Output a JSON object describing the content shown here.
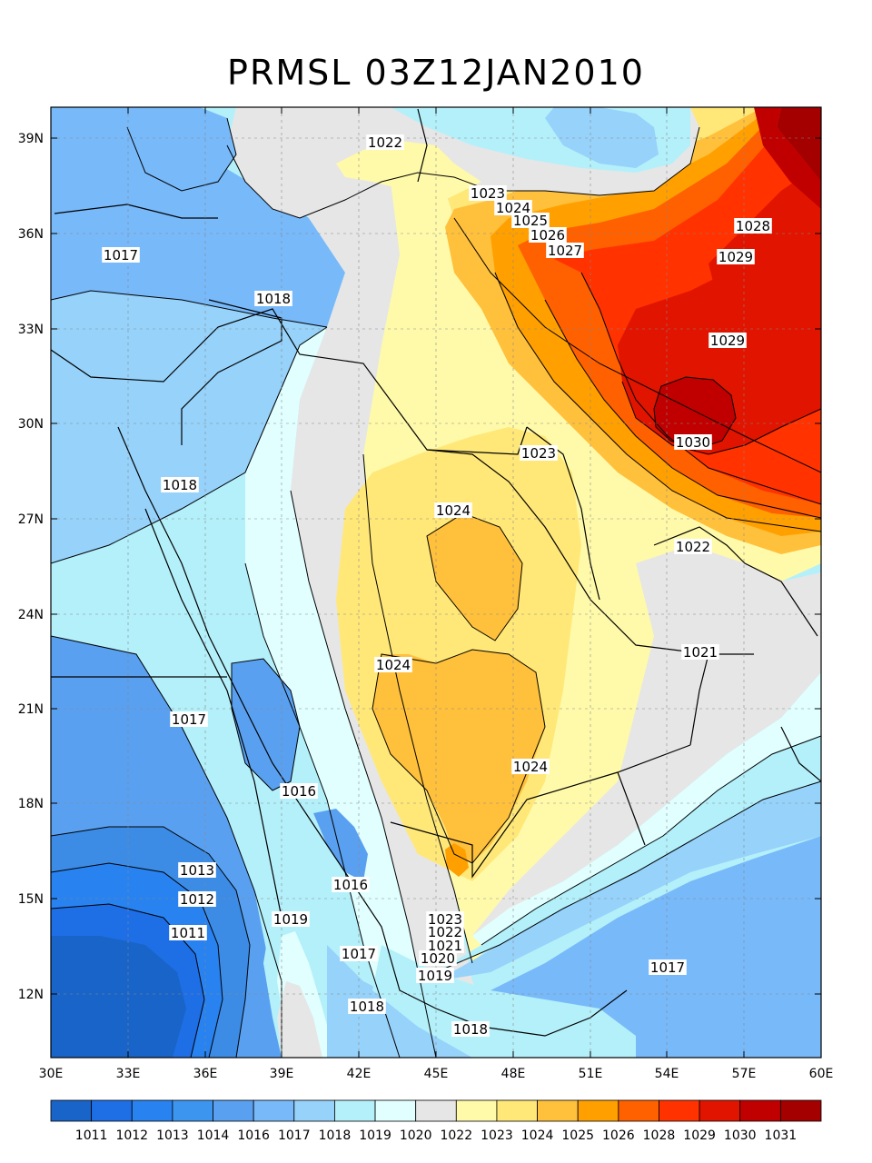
{
  "title": "PRMSL 03Z12JAN2010",
  "map": {
    "lon_range": [
      30,
      60
    ],
    "lat_range": [
      9.7,
      40.8
    ],
    "lon_ticks": [
      "30E",
      "33E",
      "36E",
      "39E",
      "42E",
      "45E",
      "48E",
      "51E",
      "54E",
      "57E",
      "60E"
    ],
    "lat_ticks": [
      "39N",
      "36N",
      "33N",
      "30N",
      "27N",
      "24N",
      "21N",
      "18N",
      "15N",
      "12N"
    ],
    "background_color": "#b4f0fa"
  },
  "regions": [
    {
      "name": "far-west-blue",
      "color": "#5aa0f0"
    },
    {
      "name": "west-1017",
      "color": "#78b9fa"
    },
    {
      "name": "west-1018",
      "color": "#96d2fa"
    },
    {
      "name": "west-1019",
      "color": "#b4f0fa"
    },
    {
      "name": "west-1020",
      "color": "#e1ffff"
    },
    {
      "name": "central-1022",
      "color": "#e6e6e6"
    },
    {
      "name": "central-1023",
      "color": "#fffaaa"
    },
    {
      "name": "central-1024",
      "color": "#ffe878"
    },
    {
      "name": "central-1025",
      "color": "#ffc03c"
    },
    {
      "name": "east-1022",
      "color": "#e6e6e6"
    },
    {
      "name": "east-1020",
      "color": "#e1ffff"
    },
    {
      "name": "east-1019",
      "color": "#b4f0fa"
    },
    {
      "name": "east-1018",
      "color": "#96d2fa"
    },
    {
      "name": "east-1017",
      "color": "#78b9fa"
    },
    {
      "name": "ne-1024",
      "color": "#ffe878"
    },
    {
      "name": "ne-1025",
      "color": "#ffc03c"
    },
    {
      "name": "ne-1026",
      "color": "#ffa000"
    },
    {
      "name": "ne-1027",
      "color": "#ff6000"
    },
    {
      "name": "ne-1028",
      "color": "#ff3200"
    },
    {
      "name": "ne-1029",
      "color": "#e11400"
    },
    {
      "name": "ne-1030",
      "color": "#c00000"
    },
    {
      "name": "ne-1031",
      "color": "#a50000"
    },
    {
      "name": "north-white-tongue",
      "color": "#e6e6e6"
    },
    {
      "name": "north-cyan-tongue",
      "color": "#b4f0fa"
    },
    {
      "name": "north-blue-blob",
      "color": "#96d2fa"
    },
    {
      "name": "nw-1017-blob",
      "color": "#78b9fa"
    },
    {
      "name": "red-sea-1016",
      "color": "#5aa0f0"
    },
    {
      "name": "south-1016",
      "color": "#5aa0f0"
    },
    {
      "name": "south-1014",
      "color": "#3c8ce6"
    },
    {
      "name": "south-1013",
      "color": "#1e6ee6"
    },
    {
      "name": "south-1011",
      "color": "#1964c8"
    },
    {
      "name": "sw-high-1025",
      "color": "#ffa000"
    },
    {
      "name": "central-1025-north",
      "color": "#ffc03c"
    },
    {
      "name": "horn-1019",
      "color": "#b4f0fa"
    },
    {
      "name": "horn-1020",
      "color": "#e1ffff"
    },
    {
      "name": "horn-1022",
      "color": "#e6e6e6"
    },
    {
      "name": "east-1017-blob",
      "color": "#78b9fa"
    }
  ],
  "contour_labels": [
    {
      "text": "1022"
    },
    {
      "text": "1017"
    },
    {
      "text": "1018"
    },
    {
      "text": "1023"
    },
    {
      "text": "1024"
    },
    {
      "text": "1025"
    },
    {
      "text": "1026"
    },
    {
      "text": "1027"
    },
    {
      "text": "1028"
    },
    {
      "text": "1029"
    },
    {
      "text": "1029"
    },
    {
      "text": "1030"
    },
    {
      "text": "1023"
    },
    {
      "text": "1018"
    },
    {
      "text": "1024"
    },
    {
      "text": "1022"
    },
    {
      "text": "1021"
    },
    {
      "text": "1024"
    },
    {
      "text": "1017"
    },
    {
      "text": "1024"
    },
    {
      "text": "1016"
    },
    {
      "text": "1013"
    },
    {
      "text": "1012"
    },
    {
      "text": "1011"
    },
    {
      "text": "1016"
    },
    {
      "text": "1019"
    },
    {
      "text": "1017"
    },
    {
      "text": "1023"
    },
    {
      "text": "1022"
    },
    {
      "text": "1021"
    },
    {
      "text": "1020"
    },
    {
      "text": "1019"
    },
    {
      "text": "1017"
    },
    {
      "text": "1018"
    },
    {
      "text": "1018"
    }
  ],
  "colorbar": {
    "labels": [
      "1011",
      "1012",
      "1013",
      "1014",
      "1016",
      "1017",
      "1018",
      "1019",
      "1020",
      "1022",
      "1023",
      "1024",
      "1025",
      "1026",
      "1028",
      "1029",
      "1030",
      "1031"
    ],
    "colors": [
      "#1964c8",
      "#1e6ee6",
      "#2882f0",
      "#3c96f0",
      "#5aa0f0",
      "#78b9fa",
      "#96d2fa",
      "#b4f0fa",
      "#e1ffff",
      "#e6e6e6",
      "#fffaaa",
      "#ffe878",
      "#ffc03c",
      "#ffa000",
      "#ff6000",
      "#ff3200",
      "#e11400",
      "#c00000",
      "#a50000"
    ]
  }
}
